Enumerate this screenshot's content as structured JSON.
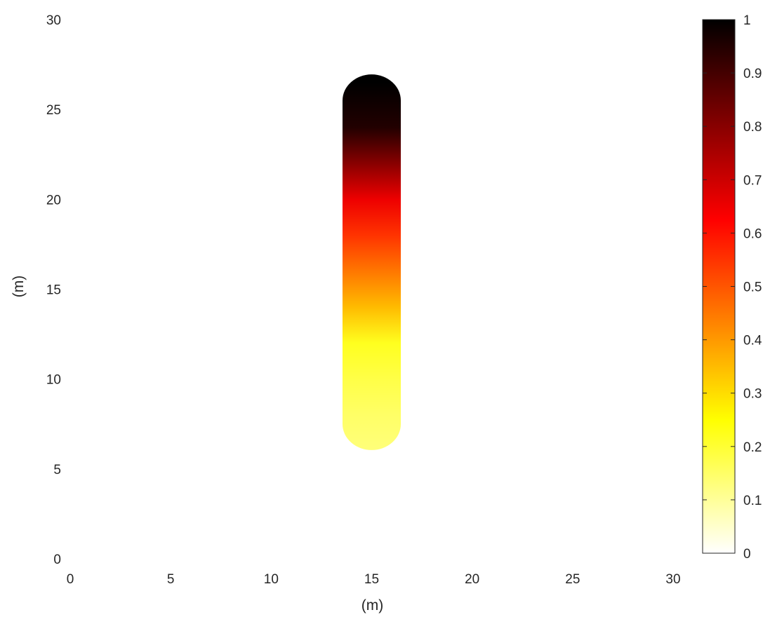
{
  "chart_data": {
    "type": "heatmap",
    "title": "",
    "xlabel": "(m)",
    "ylabel": "(m)",
    "xlim": [
      0,
      30
    ],
    "ylim": [
      0,
      30
    ],
    "xticks": [
      0,
      5,
      10,
      15,
      20,
      25,
      30
    ],
    "yticks": [
      0,
      5,
      10,
      15,
      20,
      25,
      30
    ],
    "grid": false,
    "region": {
      "shape": "capsule",
      "center_x": 15,
      "y_start": 7.5,
      "y_end": 25.5,
      "radius": 1.45,
      "values": [
        {
          "y": 6,
          "value": 0.13
        },
        {
          "y": 8,
          "value": 0.15
        },
        {
          "y": 10,
          "value": 0.18
        },
        {
          "y": 12,
          "value": 0.22
        },
        {
          "y": 14,
          "value": 0.35
        },
        {
          "y": 16,
          "value": 0.45
        },
        {
          "y": 18,
          "value": 0.55
        },
        {
          "y": 20,
          "value": 0.65
        },
        {
          "y": 22,
          "value": 0.8
        },
        {
          "y": 24,
          "value": 0.95
        },
        {
          "y": 26.5,
          "value": 1.0
        }
      ]
    },
    "colorbar": {
      "colormap": "hot (reversed)",
      "range": [
        0,
        1
      ],
      "ticks": [
        0,
        0.1,
        0.2,
        0.3,
        0.4,
        0.5,
        0.6,
        0.7,
        0.8,
        0.9,
        1
      ],
      "tick_labels": [
        "0",
        "0.1",
        "0.2",
        "0.3",
        "0.4",
        "0.5",
        "0.6",
        "0.7",
        "0.8",
        "0.9",
        "1"
      ],
      "placement": "right"
    }
  }
}
